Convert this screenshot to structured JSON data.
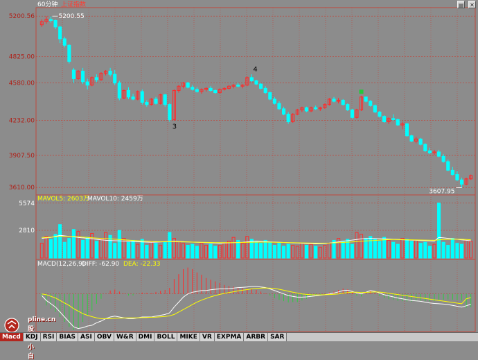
{
  "window": {
    "period_label": "60分钟",
    "subtitle": "上证指数"
  },
  "controls": [
    "▤",
    "✕"
  ],
  "tabs": [
    "Macd",
    "KDJ",
    "RSI",
    "BIAS",
    "ASI",
    "OBV",
    "W&R",
    "DMI",
    "BOLL",
    "MIKE",
    "VR",
    "EXPMA",
    "ARBR",
    "SAR"
  ],
  "watermark": {
    "line1": "pline.cn",
    "line2": "股票小白"
  },
  "colors": {
    "bg": "#8c8c8c",
    "up": "#ff2a2a",
    "down": "#00ffff",
    "grid": "#c0473c",
    "ma5": "#ffffff",
    "ma10": "#ffff00",
    "diff": "#ffffff",
    "dea": "#ffff00"
  },
  "chart_data": [
    {
      "type": "candlestick",
      "title": "60分钟",
      "y_ticks": [
        "5200.56",
        "4825.00",
        "4580.00",
        "4232.00",
        "3907.50",
        "3610.00"
      ],
      "ylim": [
        3560,
        5260
      ],
      "grid": true,
      "annotations": [
        {
          "text": "5200.55",
          "kind": "high"
        },
        {
          "text": "3607.95",
          "kind": "low"
        },
        {
          "text": "3",
          "kind": "wave"
        },
        {
          "text": "4",
          "kind": "wave"
        }
      ],
      "ohlc": [
        [
          5120,
          5170,
          5100,
          5150
        ],
        [
          5150,
          5200,
          5130,
          5170
        ],
        [
          5170,
          5200.55,
          5140,
          5160
        ],
        [
          5160,
          5170,
          5080,
          5100
        ],
        [
          5100,
          5110,
          4950,
          4990
        ],
        [
          4990,
          5010,
          4910,
          4930
        ],
        [
          4930,
          4940,
          4760,
          4780
        ],
        [
          4700,
          4720,
          4580,
          4620
        ],
        [
          4620,
          4700,
          4610,
          4690
        ],
        [
          4690,
          4720,
          4570,
          4590
        ],
        [
          4590,
          4620,
          4520,
          4560
        ],
        [
          4560,
          4640,
          4550,
          4630
        ],
        [
          4630,
          4660,
          4590,
          4610
        ],
        [
          4610,
          4680,
          4600,
          4670
        ],
        [
          4670,
          4700,
          4650,
          4690
        ],
        [
          4690,
          4720,
          4640,
          4660
        ],
        [
          4660,
          4700,
          4560,
          4580
        ],
        [
          4580,
          4600,
          4420,
          4440
        ],
        [
          4440,
          4520,
          4430,
          4510
        ],
        [
          4510,
          4540,
          4430,
          4450
        ],
        [
          4450,
          4480,
          4420,
          4430
        ],
        [
          4430,
          4510,
          4420,
          4500
        ],
        [
          4500,
          4520,
          4380,
          4400
        ],
        [
          4400,
          4420,
          4360,
          4380
        ],
        [
          4380,
          4440,
          4370,
          4430
        ],
        [
          4430,
          4450,
          4380,
          4390
        ],
        [
          4390,
          4480,
          4380,
          4470
        ],
        [
          4470,
          4480,
          4360,
          4380
        ],
        [
          4380,
          4390,
          4220,
          4240
        ],
        [
          4240,
          4520,
          4230,
          4510
        ],
        [
          4510,
          4560,
          4490,
          4550
        ],
        [
          4550,
          4590,
          4530,
          4580
        ],
        [
          4580,
          4590,
          4530,
          4540
        ],
        [
          4540,
          4560,
          4510,
          4520
        ],
        [
          4520,
          4540,
          4490,
          4500
        ],
        [
          4500,
          4530,
          4480,
          4520
        ],
        [
          4520,
          4540,
          4500,
          4530
        ],
        [
          4530,
          4550,
          4500,
          4510
        ],
        [
          4510,
          4520,
          4480,
          4490
        ],
        [
          4490,
          4530,
          4480,
          4520
        ],
        [
          4520,
          4540,
          4510,
          4530
        ],
        [
          4530,
          4560,
          4520,
          4550
        ],
        [
          4550,
          4570,
          4530,
          4560
        ],
        [
          4560,
          4580,
          4540,
          4550
        ],
        [
          4550,
          4570,
          4530,
          4560
        ],
        [
          4560,
          4640,
          4550,
          4630
        ],
        [
          4630,
          4660,
          4590,
          4600
        ],
        [
          4600,
          4610,
          4560,
          4570
        ],
        [
          4570,
          4580,
          4520,
          4530
        ],
        [
          4530,
          4550,
          4480,
          4490
        ],
        [
          4490,
          4500,
          4420,
          4430
        ],
        [
          4430,
          4450,
          4380,
          4390
        ],
        [
          4390,
          4410,
          4330,
          4340
        ],
        [
          4340,
          4360,
          4280,
          4290
        ],
        [
          4290,
          4310,
          4200,
          4220
        ],
        [
          4220,
          4300,
          4210,
          4290
        ],
        [
          4290,
          4340,
          4280,
          4330
        ],
        [
          4330,
          4360,
          4310,
          4350
        ],
        [
          4350,
          4360,
          4310,
          4320
        ],
        [
          4320,
          4360,
          4310,
          4350
        ],
        [
          4350,
          4370,
          4330,
          4340
        ],
        [
          4340,
          4360,
          4320,
          4350
        ],
        [
          4350,
          4390,
          4340,
          4380
        ],
        [
          4380,
          4440,
          4370,
          4430
        ],
        [
          4430,
          4450,
          4400,
          4410
        ],
        [
          4410,
          4440,
          4390,
          4420
        ],
        [
          4420,
          4430,
          4370,
          4380
        ],
        [
          4380,
          4390,
          4320,
          4330
        ],
        [
          4330,
          4340,
          4250,
          4260
        ],
        [
          4260,
          4340,
          4250,
          4330
        ],
        [
          4330,
          4460,
          4320,
          4450
        ],
        [
          4450,
          4440,
          4400,
          4410
        ],
        [
          4410,
          4420,
          4360,
          4370
        ],
        [
          4370,
          4380,
          4300,
          4310
        ],
        [
          4310,
          4320,
          4260,
          4270
        ],
        [
          4270,
          4280,
          4210,
          4220
        ],
        [
          4220,
          4260,
          4200,
          4250
        ],
        [
          4250,
          4290,
          4230,
          4240
        ],
        [
          4240,
          4250,
          4180,
          4190
        ],
        [
          4190,
          4220,
          4150,
          4200
        ],
        [
          4200,
          4210,
          4080,
          4090
        ],
        [
          4090,
          4100,
          4030,
          4040
        ],
        [
          4040,
          4080,
          4020,
          4060
        ],
        [
          4060,
          4070,
          4000,
          4010
        ],
        [
          4010,
          4020,
          3940,
          3950
        ],
        [
          3950,
          3980,
          3920,
          3930
        ],
        [
          3930,
          3960,
          3910,
          3940
        ],
        [
          3940,
          3960,
          3890,
          3900
        ],
        [
          3900,
          3920,
          3840,
          3850
        ],
        [
          3850,
          3870,
          3760,
          3770
        ],
        [
          3770,
          3800,
          3720,
          3730
        ],
        [
          3730,
          3760,
          3670,
          3680
        ],
        [
          3680,
          3700,
          3607.95,
          3640
        ],
        [
          3640,
          3700,
          3630,
          3690
        ],
        [
          3690,
          3730,
          3680,
          3720
        ]
      ]
    },
    {
      "type": "bar",
      "title": "成交量",
      "legend": [
        {
          "label": "MAVOL5: 2603万",
          "color": "#ffff00"
        },
        {
          "label": "MAVOL10: 2459万",
          "color": "#ffffff"
        }
      ],
      "y_ticks": [
        "5574",
        "2810"
      ],
      "ylim": [
        0,
        5700
      ],
      "values": [
        1500,
        2200,
        1900,
        2400,
        3400,
        1600,
        2000,
        2900,
        2700,
        1800,
        2100,
        2500,
        1700,
        1900,
        2600,
        2300,
        1500,
        2800,
        2000,
        1600,
        1800,
        1400,
        1900,
        1300,
        1700,
        1500,
        1300,
        1600,
        2600,
        2000,
        1700,
        1500,
        1300,
        1400,
        1200,
        1500,
        1300,
        1400,
        1200,
        1300,
        1500,
        1700,
        2100,
        1800,
        1500,
        2200,
        1900,
        1700,
        1500,
        1800,
        1600,
        1300,
        1500,
        1200,
        1400,
        1300,
        1200,
        1500,
        1300,
        1400,
        1200,
        1100,
        1300,
        1500,
        1800,
        2000,
        1700,
        1900,
        1400,
        2600,
        2400,
        2000,
        2200,
        1900,
        1700,
        2100,
        1800,
        1600,
        1400,
        2000,
        1900,
        1700,
        1800,
        1500,
        1600,
        1200,
        1400,
        5574,
        1600,
        1300,
        2000,
        1500,
        1400,
        1800,
        1700
      ],
      "ma5": [
        2000,
        2050,
        2100,
        2200,
        2300,
        2250,
        2200,
        2150,
        2100,
        2050,
        2000,
        1950,
        1900,
        1850,
        1800,
        1780,
        1760,
        1740,
        1720,
        1700,
        1680,
        1660,
        1640,
        1620,
        1600,
        1620,
        1640,
        1660,
        1680,
        1700,
        1680,
        1660,
        1640,
        1620,
        1600,
        1580,
        1560,
        1540,
        1520,
        1500,
        1520,
        1540,
        1560,
        1580,
        1600,
        1640,
        1680,
        1700,
        1680,
        1660,
        1640,
        1620,
        1600,
        1580,
        1560,
        1540,
        1520,
        1500,
        1480,
        1460,
        1440,
        1460,
        1480,
        1520,
        1580,
        1640,
        1700,
        1760,
        1820,
        1880,
        1940,
        1980,
        2000,
        1980,
        1960,
        1940,
        1920,
        1900,
        1880,
        1860,
        1840,
        1820,
        1800,
        1780,
        1760,
        1740,
        1720,
        2100,
        2050,
        2000,
        1950,
        1900,
        1850,
        1800,
        1750
      ],
      "ma10": [
        2100,
        2100,
        2110,
        2150,
        2200,
        2210,
        2200,
        2180,
        2150,
        2120,
        2090,
        2060,
        2030,
        2000,
        1970,
        1940,
        1910,
        1880,
        1850,
        1820,
        1790,
        1760,
        1730,
        1700,
        1680,
        1670,
        1660,
        1660,
        1660,
        1660,
        1650,
        1640,
        1630,
        1620,
        1610,
        1600,
        1590,
        1580,
        1570,
        1560,
        1560,
        1560,
        1560,
        1570,
        1580,
        1590,
        1600,
        1610,
        1620,
        1620,
        1610,
        1600,
        1590,
        1580,
        1570,
        1560,
        1550,
        1540,
        1530,
        1520,
        1510,
        1510,
        1510,
        1520,
        1540,
        1560,
        1580,
        1610,
        1640,
        1670,
        1700,
        1730,
        1760,
        1790,
        1820,
        1850,
        1870,
        1880,
        1880,
        1870,
        1860,
        1850,
        1840,
        1830,
        1820,
        1810,
        1800,
        1850,
        1880,
        1900,
        1910,
        1910,
        1900,
        1880,
        1860
      ]
    },
    {
      "type": "macd",
      "legend": [
        {
          "label": "MACD(12,26,9)",
          "color": "#ffffff"
        },
        {
          "label": "DIFF: -62.90",
          "color": "#ffffff"
        },
        {
          "label": "DEA: -22.33",
          "color": "#ffff00"
        }
      ],
      "ylim": [
        -220,
        150
      ],
      "diff": [
        -10,
        -40,
        -60,
        -80,
        -110,
        -140,
        -170,
        -200,
        -210,
        -205,
        -195,
        -190,
        -175,
        -165,
        -150,
        -140,
        -135,
        -140,
        -145,
        -150,
        -150,
        -145,
        -140,
        -140,
        -140,
        -135,
        -130,
        -125,
        -115,
        -80,
        -50,
        -20,
        0,
        10,
        15,
        20,
        20,
        25,
        28,
        30,
        30,
        32,
        35,
        38,
        40,
        42,
        45,
        45,
        42,
        38,
        30,
        20,
        10,
        0,
        -10,
        -15,
        -20,
        -20,
        -18,
        -15,
        -12,
        -8,
        -5,
        0,
        5,
        12,
        20,
        22,
        15,
        5,
        0,
        10,
        20,
        15,
        5,
        -5,
        -12,
        -18,
        -25,
        -30,
        -35,
        -40,
        -42,
        -45,
        -50,
        -55,
        -58,
        -60,
        -62,
        -65,
        -70,
        -75,
        -80,
        -72,
        -62.9
      ],
      "dea": [
        0,
        -5,
        -15,
        -25,
        -40,
        -55,
        -70,
        -90,
        -105,
        -120,
        -130,
        -138,
        -145,
        -150,
        -150,
        -150,
        -148,
        -147,
        -146,
        -145,
        -145,
        -145,
        -144,
        -143,
        -142,
        -141,
        -139,
        -137,
        -133,
        -125,
        -110,
        -95,
        -80,
        -65,
        -50,
        -38,
        -28,
        -18,
        -10,
        -3,
        3,
        8,
        13,
        18,
        22,
        26,
        30,
        33,
        35,
        36,
        35,
        33,
        28,
        22,
        16,
        10,
        5,
        0,
        -3,
        -5,
        -6,
        -6,
        -5,
        -4,
        -2,
        0,
        4,
        8,
        10,
        10,
        8,
        9,
        11,
        12,
        11,
        8,
        4,
        0,
        -4,
        -8,
        -12,
        -16,
        -20,
        -24,
        -28,
        -32,
        -36,
        -40,
        -44,
        -48,
        -52,
        -56,
        -60,
        -30,
        -22.33
      ]
    }
  ]
}
